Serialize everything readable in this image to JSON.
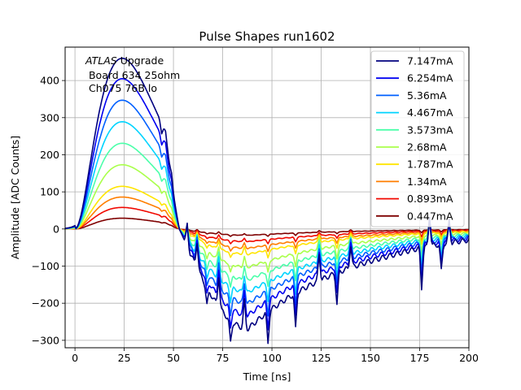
{
  "chart_data": {
    "type": "line",
    "title": "Pulse Shapes run1602",
    "xlabel": "Time [ns]",
    "ylabel": "Amplitude [ADC Counts]",
    "xlim": [
      -5,
      200
    ],
    "ylim": [
      -320,
      490
    ],
    "xticks": [
      0,
      25,
      50,
      75,
      100,
      125,
      150,
      175,
      200
    ],
    "yticks": [
      -300,
      -200,
      -100,
      0,
      100,
      200,
      300,
      400
    ],
    "grid": true,
    "legend_position": "top-right",
    "annotation": {
      "line1_italic": "ATLAS",
      "line1_rest": " Upgrade",
      "line2": " Board 634 25ohm",
      "line3": " Ch075 76B lo"
    },
    "series": [
      {
        "name": "7.147mA",
        "color": "#00007f",
        "peak": 460,
        "undershoot": -268
      },
      {
        "name": "6.254mA",
        "color": "#0000f1",
        "peak": 405,
        "undershoot": -232
      },
      {
        "name": "5.36mA",
        "color": "#0060ff",
        "peak": 347,
        "undershoot": -200
      },
      {
        "name": "4.467mA",
        "color": "#00d4ff",
        "peak": 289,
        "undershoot": -170
      },
      {
        "name": "3.573mA",
        "color": "#4cffaa",
        "peak": 231,
        "undershoot": -137
      },
      {
        "name": "2.68mA",
        "color": "#aaff4c",
        "peak": 173,
        "undershoot": -103
      },
      {
        "name": "1.787mA",
        "color": "#ffe500",
        "peak": 115,
        "undershoot": -68
      },
      {
        "name": "1.34mA",
        "color": "#ff7e00",
        "peak": 86,
        "undershoot": -52
      },
      {
        "name": "0.893mA",
        "color": "#f10800",
        "peak": 58,
        "undershoot": -34
      },
      {
        "name": "0.447mA",
        "color": "#7f0000",
        "peak": 29,
        "undershoot": -17
      }
    ]
  }
}
